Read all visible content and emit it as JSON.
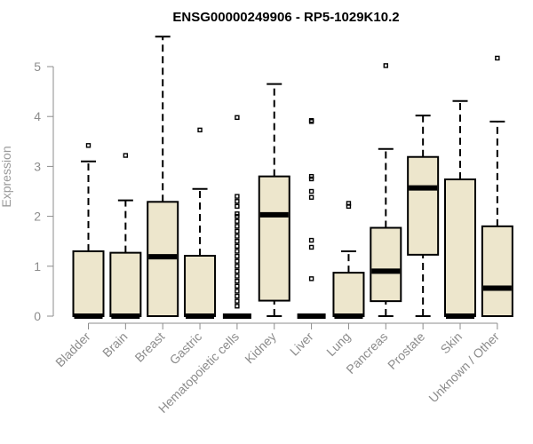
{
  "chart_data": {
    "type": "boxplot",
    "title": "ENSG00000249906 - RP5-1029K10.2",
    "xlabel": "",
    "ylabel": "Expression",
    "ylim": [
      0,
      5.5
    ],
    "yticks": [
      0,
      1,
      2,
      3,
      4,
      5
    ],
    "categories": [
      "Bladder",
      "Brain",
      "Breast",
      "Gastric",
      "Hematopoietic cells",
      "Kidney",
      "Liver",
      "Lung",
      "Pancreas",
      "Prostate",
      "Skin",
      "Unknown / Other"
    ],
    "boxes": [
      {
        "name": "Bladder",
        "min": 0,
        "q1": 0,
        "median": 0,
        "q3": 1.3,
        "max": 3.1,
        "outliers": [
          3.42
        ]
      },
      {
        "name": "Brain",
        "min": 0,
        "q1": 0,
        "median": 0,
        "q3": 1.27,
        "max": 2.32,
        "outliers": [
          3.22
        ]
      },
      {
        "name": "Breast",
        "min": 0,
        "q1": 0,
        "median": 1.19,
        "q3": 2.29,
        "max": 5.6,
        "outliers": []
      },
      {
        "name": "Gastric",
        "min": 0,
        "q1": 0,
        "median": 0,
        "q3": 1.21,
        "max": 2.55,
        "outliers": [
          3.73
        ]
      },
      {
        "name": "Hematopoietic cells",
        "min": 0,
        "q1": 0,
        "median": 0,
        "q3": 0,
        "max": 0,
        "outliers": [
          0.2,
          0.3,
          0.4,
          0.5,
          0.6,
          0.7,
          0.8,
          0.9,
          1.0,
          1.1,
          1.2,
          1.3,
          1.4,
          1.5,
          1.6,
          1.7,
          1.8,
          1.9,
          2.0,
          2.05,
          2.2,
          2.3,
          2.4,
          3.98
        ]
      },
      {
        "name": "Kidney",
        "min": 0,
        "q1": 0.31,
        "median": 2.03,
        "q3": 2.8,
        "max": 4.65,
        "outliers": []
      },
      {
        "name": "Liver",
        "min": 0,
        "q1": 0,
        "median": 0,
        "q3": 0,
        "max": 0,
        "outliers": [
          0.75,
          1.38,
          1.52,
          2.38,
          2.5,
          2.75,
          2.8,
          3.9,
          3.92
        ]
      },
      {
        "name": "Lung",
        "min": 0,
        "q1": 0,
        "median": 0,
        "q3": 0.87,
        "max": 1.3,
        "outliers": [
          2.2,
          2.26
        ]
      },
      {
        "name": "Pancreas",
        "min": 0,
        "q1": 0.3,
        "median": 0.9,
        "q3": 1.77,
        "max": 3.35,
        "outliers": [
          5.02
        ]
      },
      {
        "name": "Prostate",
        "min": 0,
        "q1": 1.23,
        "median": 2.57,
        "q3": 3.19,
        "max": 4.02,
        "outliers": []
      },
      {
        "name": "Skin",
        "min": 0,
        "q1": 0,
        "median": 0,
        "q3": 2.74,
        "max": 4.31,
        "outliers": []
      },
      {
        "name": "Unknown / Other",
        "min": 0,
        "q1": 0,
        "median": 0.56,
        "q3": 1.8,
        "max": 3.9,
        "outliers": [
          5.17
        ]
      }
    ]
  }
}
